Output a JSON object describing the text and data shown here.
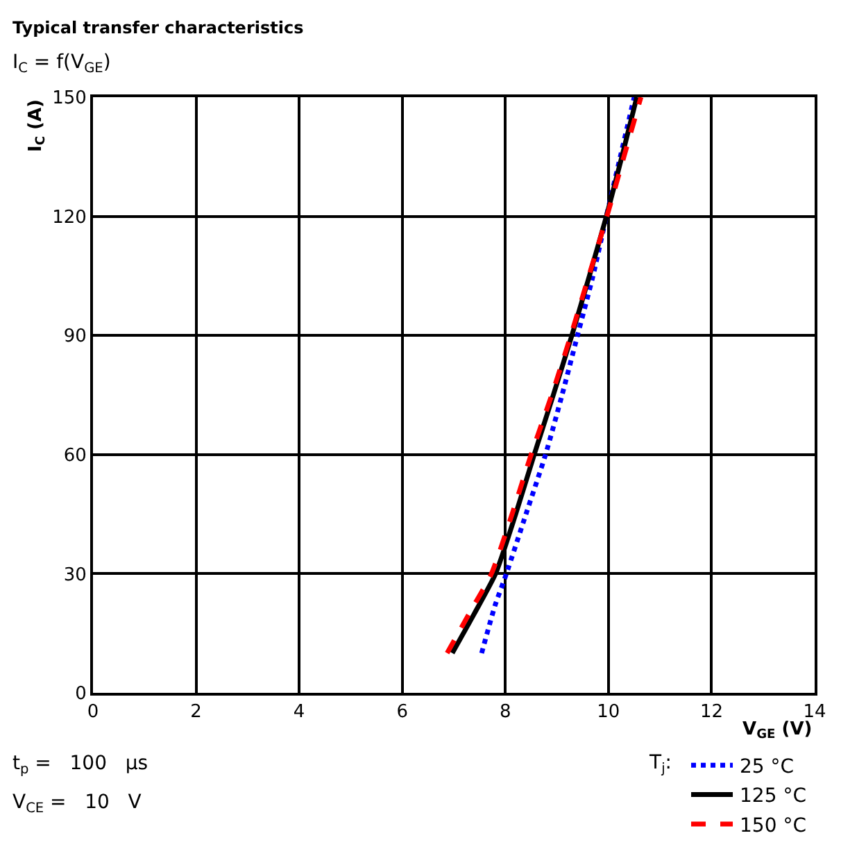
{
  "chart_data": {
    "type": "line",
    "title": "Typical transfer characteristics",
    "subtitle": "I$_{C}$ = f(V$_{GE}$)",
    "xlabel": "V$_{GE}$ (V)",
    "ylabel": "I$_{C}$ (A)",
    "legend_title": "T$_{j}$:",
    "xlim": [
      0,
      14
    ],
    "xticks": [
      0,
      2,
      4,
      6,
      8,
      10,
      12,
      14
    ],
    "ylim": [
      0,
      150
    ],
    "yticks": [
      0,
      30,
      60,
      90,
      120,
      150
    ],
    "grid": true,
    "legend": "bottom right",
    "marker": "none",
    "series": [
      {
        "name": "25 °C",
        "color": "#0000ff",
        "line_style": "dotted",
        "x": [
          7.54,
          7.8,
          8.02,
          8.4,
          8.78,
          9.1,
          9.4,
          9.7,
          9.96,
          10.23,
          10.5
        ],
        "values": [
          10,
          22,
          30,
          45,
          60,
          75,
          90,
          105,
          120,
          135,
          150
        ]
      },
      {
        "name": "125 °C",
        "color": "#000000",
        "line_style": "solid",
        "x": [
          6.97,
          7.4,
          7.81,
          8.2,
          8.56,
          8.93,
          9.29,
          9.63,
          9.96,
          10.26,
          10.55
        ],
        "values": [
          10,
          20,
          30,
          45,
          60,
          75,
          90,
          105,
          120,
          135,
          150
        ]
      },
      {
        "name": "150 °C",
        "color": "#ff0000",
        "line_style": "dashed",
        "x": [
          6.87,
          7.3,
          7.73,
          8.13,
          8.5,
          8.9,
          9.27,
          9.62,
          9.97,
          10.3,
          10.63
        ],
        "values": [
          10,
          20,
          30,
          45,
          60,
          75,
          90,
          105,
          120,
          135,
          150
        ]
      }
    ],
    "annotations": [
      "t$_{p}$ =   100   µs",
      "V$_{CE}$ =   10   V"
    ]
  }
}
